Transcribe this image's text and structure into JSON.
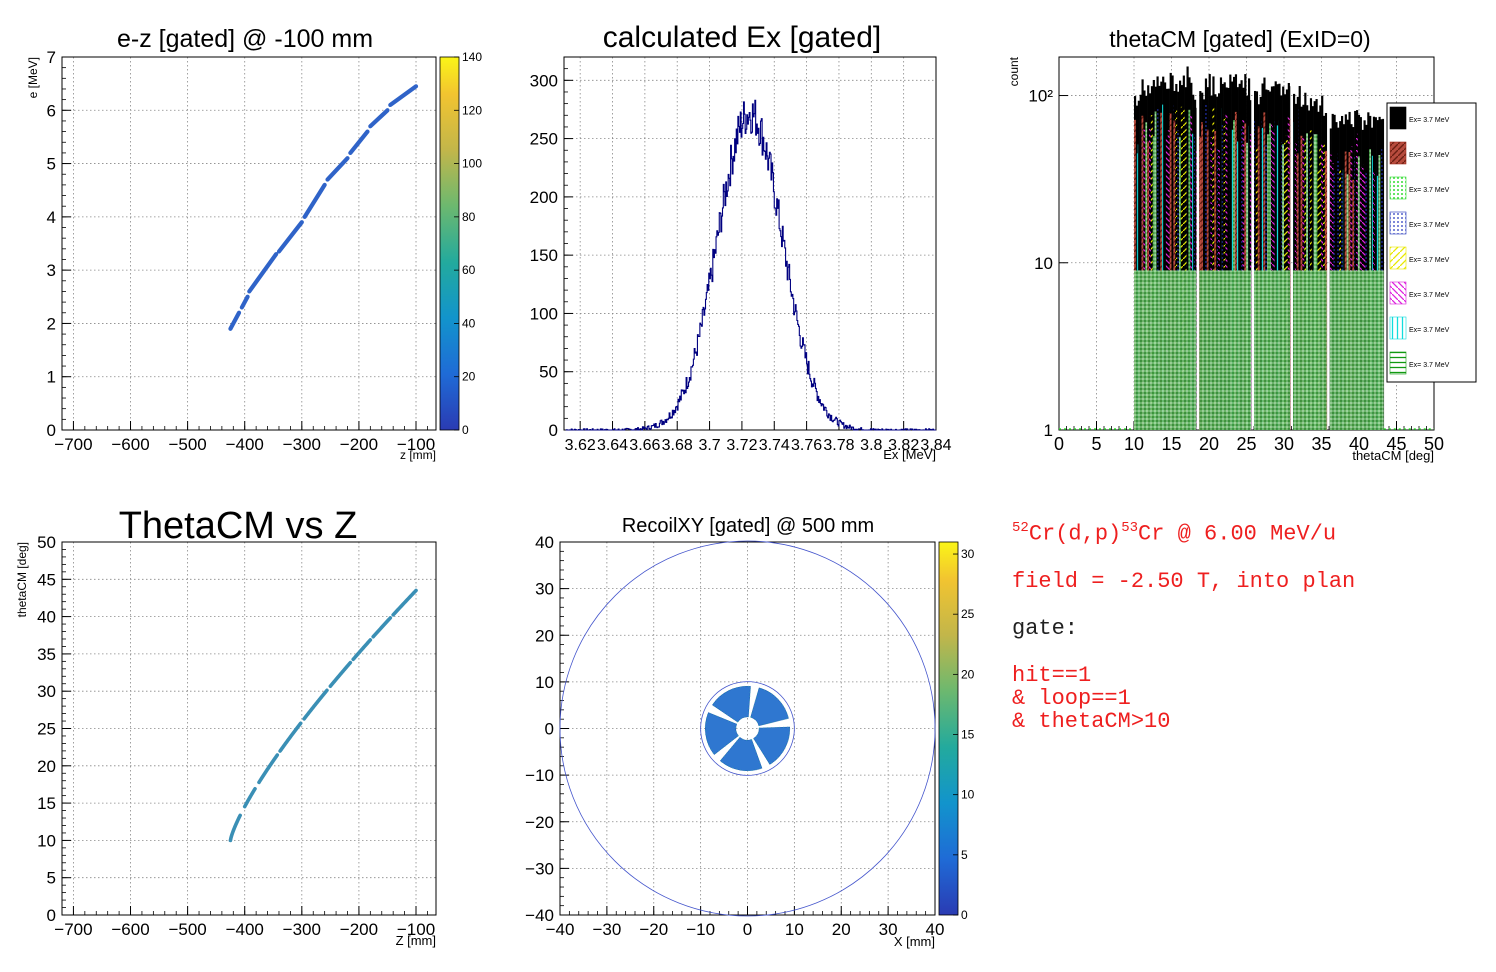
{
  "colors": {
    "frame": "#000000",
    "grid": "#888888",
    "line_hist": "#000080",
    "kin": "#2f63c8",
    "thcm": "#3a8fb5",
    "text_red": "#ee1f1f"
  },
  "palette_icon": "viridis-palette",
  "chart_data": [
    {
      "type": "heatmap",
      "title": "e-z [gated] @  -100 mm",
      "xlabel": "z [mm]",
      "ylabel": "e [MeV]",
      "xlim": [
        -720,
        -65
      ],
      "ylim": [
        0,
        7
      ],
      "xticks": [
        "−700",
        "−600",
        "−500",
        "−400",
        "−300",
        "−200",
        "−100"
      ],
      "xtick_vals": [
        -700,
        -600,
        -500,
        -400,
        -300,
        -200,
        -100
      ],
      "yticks": [
        "0",
        "1",
        "2",
        "3",
        "4",
        "5",
        "6",
        "7"
      ],
      "ytick_vals": [
        0,
        1,
        2,
        3,
        4,
        5,
        6,
        7
      ],
      "zticks": [
        "0",
        "20",
        "40",
        "60",
        "80",
        "100",
        "120",
        "140"
      ],
      "zlim": [
        0,
        140
      ],
      "grid": true,
      "segments": [
        [
          -425,
          1.9,
          -410,
          2.2
        ],
        [
          -405,
          2.3,
          -395,
          2.5
        ],
        [
          -392,
          2.6,
          -345,
          3.3
        ],
        [
          -340,
          3.35,
          -300,
          3.9
        ],
        [
          -295,
          4.0,
          -260,
          4.6
        ],
        [
          -255,
          4.7,
          -220,
          5.1
        ],
        [
          -215,
          5.2,
          -185,
          5.6
        ],
        [
          -180,
          5.7,
          -150,
          6.0
        ],
        [
          -145,
          6.1,
          -100,
          6.45
        ]
      ]
    },
    {
      "type": "line",
      "title": "calculated Ex [gated]",
      "xlabel": "Ex [MeV]",
      "ylabel": "",
      "xlim": [
        3.61,
        3.84
      ],
      "ylim": [
        0,
        320
      ],
      "xticks": [
        "3.62",
        "3.64",
        "3.66",
        "3.68",
        "3.7",
        "3.72",
        "3.74",
        "3.76",
        "3.78",
        "3.8",
        "3.82",
        "3.84"
      ],
      "xtick_vals": [
        3.62,
        3.64,
        3.66,
        3.68,
        3.7,
        3.72,
        3.74,
        3.76,
        3.78,
        3.8,
        3.82,
        3.84
      ],
      "yticks": [
        "0",
        "50",
        "100",
        "150",
        "200",
        "250",
        "300"
      ],
      "ytick_vals": [
        0,
        50,
        100,
        150,
        200,
        250,
        300
      ],
      "grid": true,
      "series": [
        {
          "mean": 3.725,
          "sigma": 0.02,
          "peak": 272,
          "x0": 3.611,
          "dx": 0.0005,
          "n": 458
        }
      ]
    },
    {
      "type": "bar",
      "title": "thetaCM [gated] (ExID=0)",
      "xlabel": "thetaCM [deg]",
      "ylabel": "count",
      "xlim": [
        0,
        50
      ],
      "ylim": [
        1,
        170
      ],
      "log_y": true,
      "xticks": [
        "0",
        "5",
        "10",
        "15",
        "20",
        "25",
        "30",
        "35",
        "40",
        "45",
        "50"
      ],
      "xtick_vals": [
        0,
        5,
        10,
        15,
        20,
        25,
        30,
        35,
        40,
        45,
        50
      ],
      "yticks": [
        "1",
        "10",
        "10²"
      ],
      "ytick_vals": [
        1,
        10,
        100
      ],
      "grid": true,
      "bands": [
        [
          10,
          18.3
        ],
        [
          18.7,
          25.6
        ],
        [
          26,
          30.8
        ],
        [
          31.2,
          35.7
        ],
        [
          36.1,
          43.3
        ]
      ],
      "black_top": [
        [
          10,
          95
        ],
        [
          11,
          110
        ],
        [
          12,
          105
        ],
        [
          13,
          120
        ],
        [
          14,
          115
        ],
        [
          15,
          125
        ],
        [
          16,
          120
        ],
        [
          17,
          130
        ],
        [
          17.9,
          90
        ],
        [
          18.7,
          105
        ],
        [
          20,
          118
        ],
        [
          21,
          112
        ],
        [
          22,
          125
        ],
        [
          23,
          120
        ],
        [
          24,
          130
        ],
        [
          25,
          115
        ],
        [
          26,
          95
        ],
        [
          27,
          110
        ],
        [
          28,
          120
        ],
        [
          29,
          112
        ],
        [
          30,
          118
        ],
        [
          31.2,
          90
        ],
        [
          32,
          100
        ],
        [
          33,
          95
        ],
        [
          34,
          98
        ],
        [
          35,
          88
        ],
        [
          36.1,
          72
        ],
        [
          37,
          75
        ],
        [
          38,
          70
        ],
        [
          39,
          73
        ],
        [
          40,
          72
        ],
        [
          41,
          70
        ],
        [
          42,
          68
        ],
        [
          43.3,
          65
        ]
      ],
      "legend_position": "right",
      "legend": [
        {
          "label": "Ex=  3.7 MeV",
          "color": "#000000",
          "pattern": "solid"
        },
        {
          "label": "Ex=  3.7 MeV",
          "color": "#a03020",
          "pattern": "hatch"
        },
        {
          "label": "Ex=  3.7 MeV",
          "color": "#33dd33",
          "pattern": "dots"
        },
        {
          "label": "Ex=  3.7 MeV",
          "color": "#2233bb",
          "pattern": "dots"
        },
        {
          "label": "Ex=  3.7 MeV",
          "color": "#e8e800",
          "pattern": "diag"
        },
        {
          "label": "Ex=  3.7 MeV",
          "color": "#dd22dd",
          "pattern": "diag"
        },
        {
          "label": "Ex=  3.7 MeV",
          "color": "#11dddd",
          "pattern": "vert"
        },
        {
          "label": "Ex=  3.7 MeV",
          "color": "#119911",
          "pattern": "horiz"
        }
      ]
    },
    {
      "type": "heatmap",
      "title": "ThetaCM vs Z",
      "xlabel": "Z [mm]",
      "ylabel": "thetaCM [deg]",
      "xlim": [
        -720,
        -65
      ],
      "ylim": [
        0,
        50
      ],
      "xticks": [
        "−700",
        "−600",
        "−500",
        "−400",
        "−300",
        "−200",
        "−100"
      ],
      "xtick_vals": [
        -700,
        -600,
        -500,
        -400,
        -300,
        -200,
        -100
      ],
      "yticks": [
        "0",
        "5",
        "10",
        "15",
        "20",
        "25",
        "30",
        "35",
        "40",
        "45",
        "50"
      ],
      "ytick_vals": [
        0,
        5,
        10,
        15,
        20,
        25,
        30,
        35,
        40,
        45,
        50
      ],
      "grid": true,
      "curve": {
        "z0": -425,
        "z1": -100,
        "t0": 10,
        "t1": 43.5,
        "power": 0.78
      },
      "gaps": [
        [
          -408,
          -400
        ],
        [
          -382,
          -375
        ],
        [
          -343,
          -338
        ],
        [
          -302,
          -296
        ],
        [
          -256,
          -250
        ],
        [
          -215,
          -210
        ],
        [
          -180,
          -175
        ],
        [
          -145,
          -140
        ]
      ]
    },
    {
      "type": "heatmap",
      "title": "RecoilXY [gated] @  500 mm",
      "xlabel": "X [mm]",
      "ylabel": "",
      "xlim": [
        -40,
        40
      ],
      "ylim": [
        -40,
        40
      ],
      "xticks": [
        "−40",
        "−30",
        "−20",
        "−10",
        "0",
        "10",
        "20",
        "30",
        "40"
      ],
      "xtick_vals": [
        -40,
        -30,
        -20,
        -10,
        0,
        10,
        20,
        30,
        40
      ],
      "yticks": [
        "−40",
        "−30",
        "−20",
        "−10",
        "0",
        "10",
        "20",
        "30",
        "40"
      ],
      "ytick_vals": [
        -40,
        -30,
        -20,
        -10,
        0,
        10,
        20,
        30,
        40
      ],
      "zticks": [
        "0",
        "5",
        "10",
        "15",
        "20",
        "25",
        "30"
      ],
      "zlim": [
        0,
        31
      ],
      "grid": true,
      "outer_circle_r": 40,
      "inner_circle_r": 10,
      "ring": {
        "r_in": 2.5,
        "r_out": 9,
        "sectors": 5,
        "gap_deg": 12
      }
    }
  ],
  "params": {
    "reaction_A1": "52",
    "reaction_mid": "Cr(d,p)",
    "reaction_A2": "53",
    "reaction_end": "Cr @ 6.00 MeV/u",
    "field": "field = -2.50 T, into plan",
    "gate_label": "gate:",
    "gate_lines": [
      "hit==1",
      "& loop==1",
      "& thetaCM>10"
    ]
  }
}
